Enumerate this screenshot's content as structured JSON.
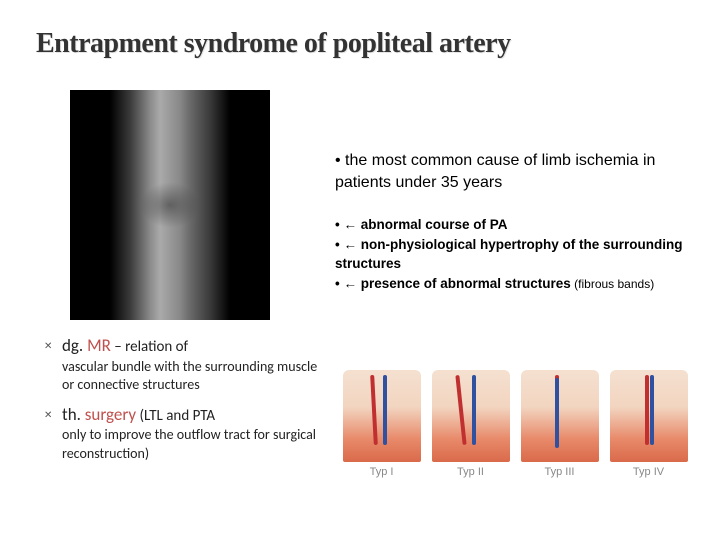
{
  "title": "Entrapment syndrome of popliteal artery",
  "intro_prefix": "• ",
  "intro": "the most common cause of limb ischemia in patients under 35 years",
  "causes": [
    {
      "prefix": "• ← ",
      "text": "abnormal course of PA"
    },
    {
      "prefix": "• ← ",
      "text": "non-physiological hypertrophy of the surrounding structures"
    },
    {
      "prefix": "• ← ",
      "text": "presence of abnormal structures",
      "suffix": " (fibrous bands)"
    }
  ],
  "left_items": [
    {
      "lead": "dg. ",
      "kw": "MR",
      "dash": " – ",
      "rest": "relation of",
      "sub": "vascular bundle with the surrounding muscle or connective structures"
    },
    {
      "lead": "th. ",
      "kw": "surgery",
      "dash": " ",
      "rest": "(LTL and PTA",
      "sub": "only to improve the outflow tract for surgical reconstruction)"
    }
  ],
  "types": [
    "Typ I",
    "Typ II",
    "Typ III",
    "Typ IV"
  ],
  "colors": {
    "kw_red": "#c0504d",
    "title": "#333333",
    "artery": "#c03030",
    "vein": "#3050a0",
    "typ_label": "#888888"
  }
}
